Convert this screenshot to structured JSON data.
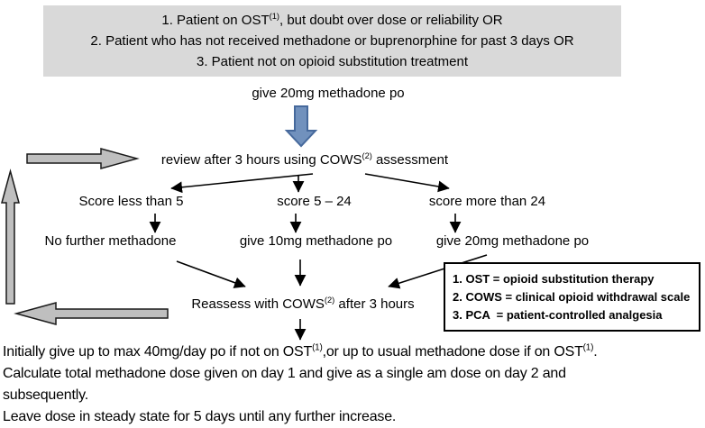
{
  "colors": {
    "panel_bg": "#d9d9d9",
    "gray_arrow_fill": "#bfbfbf",
    "gray_arrow_stroke": "#1a1a1a",
    "blue_arrow_fill": "#7191bd",
    "blue_arrow_stroke": "#46699c",
    "line": "#000000"
  },
  "top_box": {
    "lines": [
      [
        {
          "text": "1. Patient on OST"
        },
        {
          "text": "(1)",
          "sup": true
        },
        {
          "text": ", but doubt over dose or reliability OR"
        }
      ],
      [
        {
          "text": "2. Patient who has not received methadone or buprenorphine for past 3 days OR"
        }
      ],
      [
        {
          "text": "3. Patient not on opioid substitution treatment"
        }
      ]
    ]
  },
  "flow": {
    "give_initial": "give 20mg methadone po",
    "review": [
      {
        "text": "review after 3 hours using COWS"
      },
      {
        "text": "(2)",
        "sup": true
      },
      {
        "text": " assessment"
      }
    ],
    "branches": [
      {
        "score": "Score less than 5",
        "action": "No further methadone"
      },
      {
        "score": "score 5 – 24",
        "action": "give 10mg methadone po"
      },
      {
        "score": "score more than 24",
        "action": "give 20mg methadone po"
      }
    ],
    "reassess": [
      {
        "text": "Reassess with COWS"
      },
      {
        "text": "(2)",
        "sup": true
      },
      {
        "text": " after 3 hours"
      }
    ]
  },
  "legend": {
    "lines": [
      "1. OST = opioid substitution therapy",
      "2. COWS = clinical opioid withdrawal scale",
      "3. PCA  = patient-controlled analgesia"
    ]
  },
  "footer": {
    "lines": [
      [
        {
          "text": "Initially give up to max 40mg/day po if not on OST"
        },
        {
          "text": "(1)",
          "sup": true
        },
        {
          "text": ",or up to usual methadone dose if on OST"
        },
        {
          "text": "(1)",
          "sup": true
        },
        {
          "text": "."
        }
      ],
      [
        {
          "text": "Calculate total methadone dose given on day 1 and give as a single am dose on day 2 and"
        }
      ],
      [
        {
          "text": "subsequently."
        }
      ],
      [
        {
          "text": "Leave dose in steady state for 5 days until any further increase."
        }
      ]
    ]
  }
}
